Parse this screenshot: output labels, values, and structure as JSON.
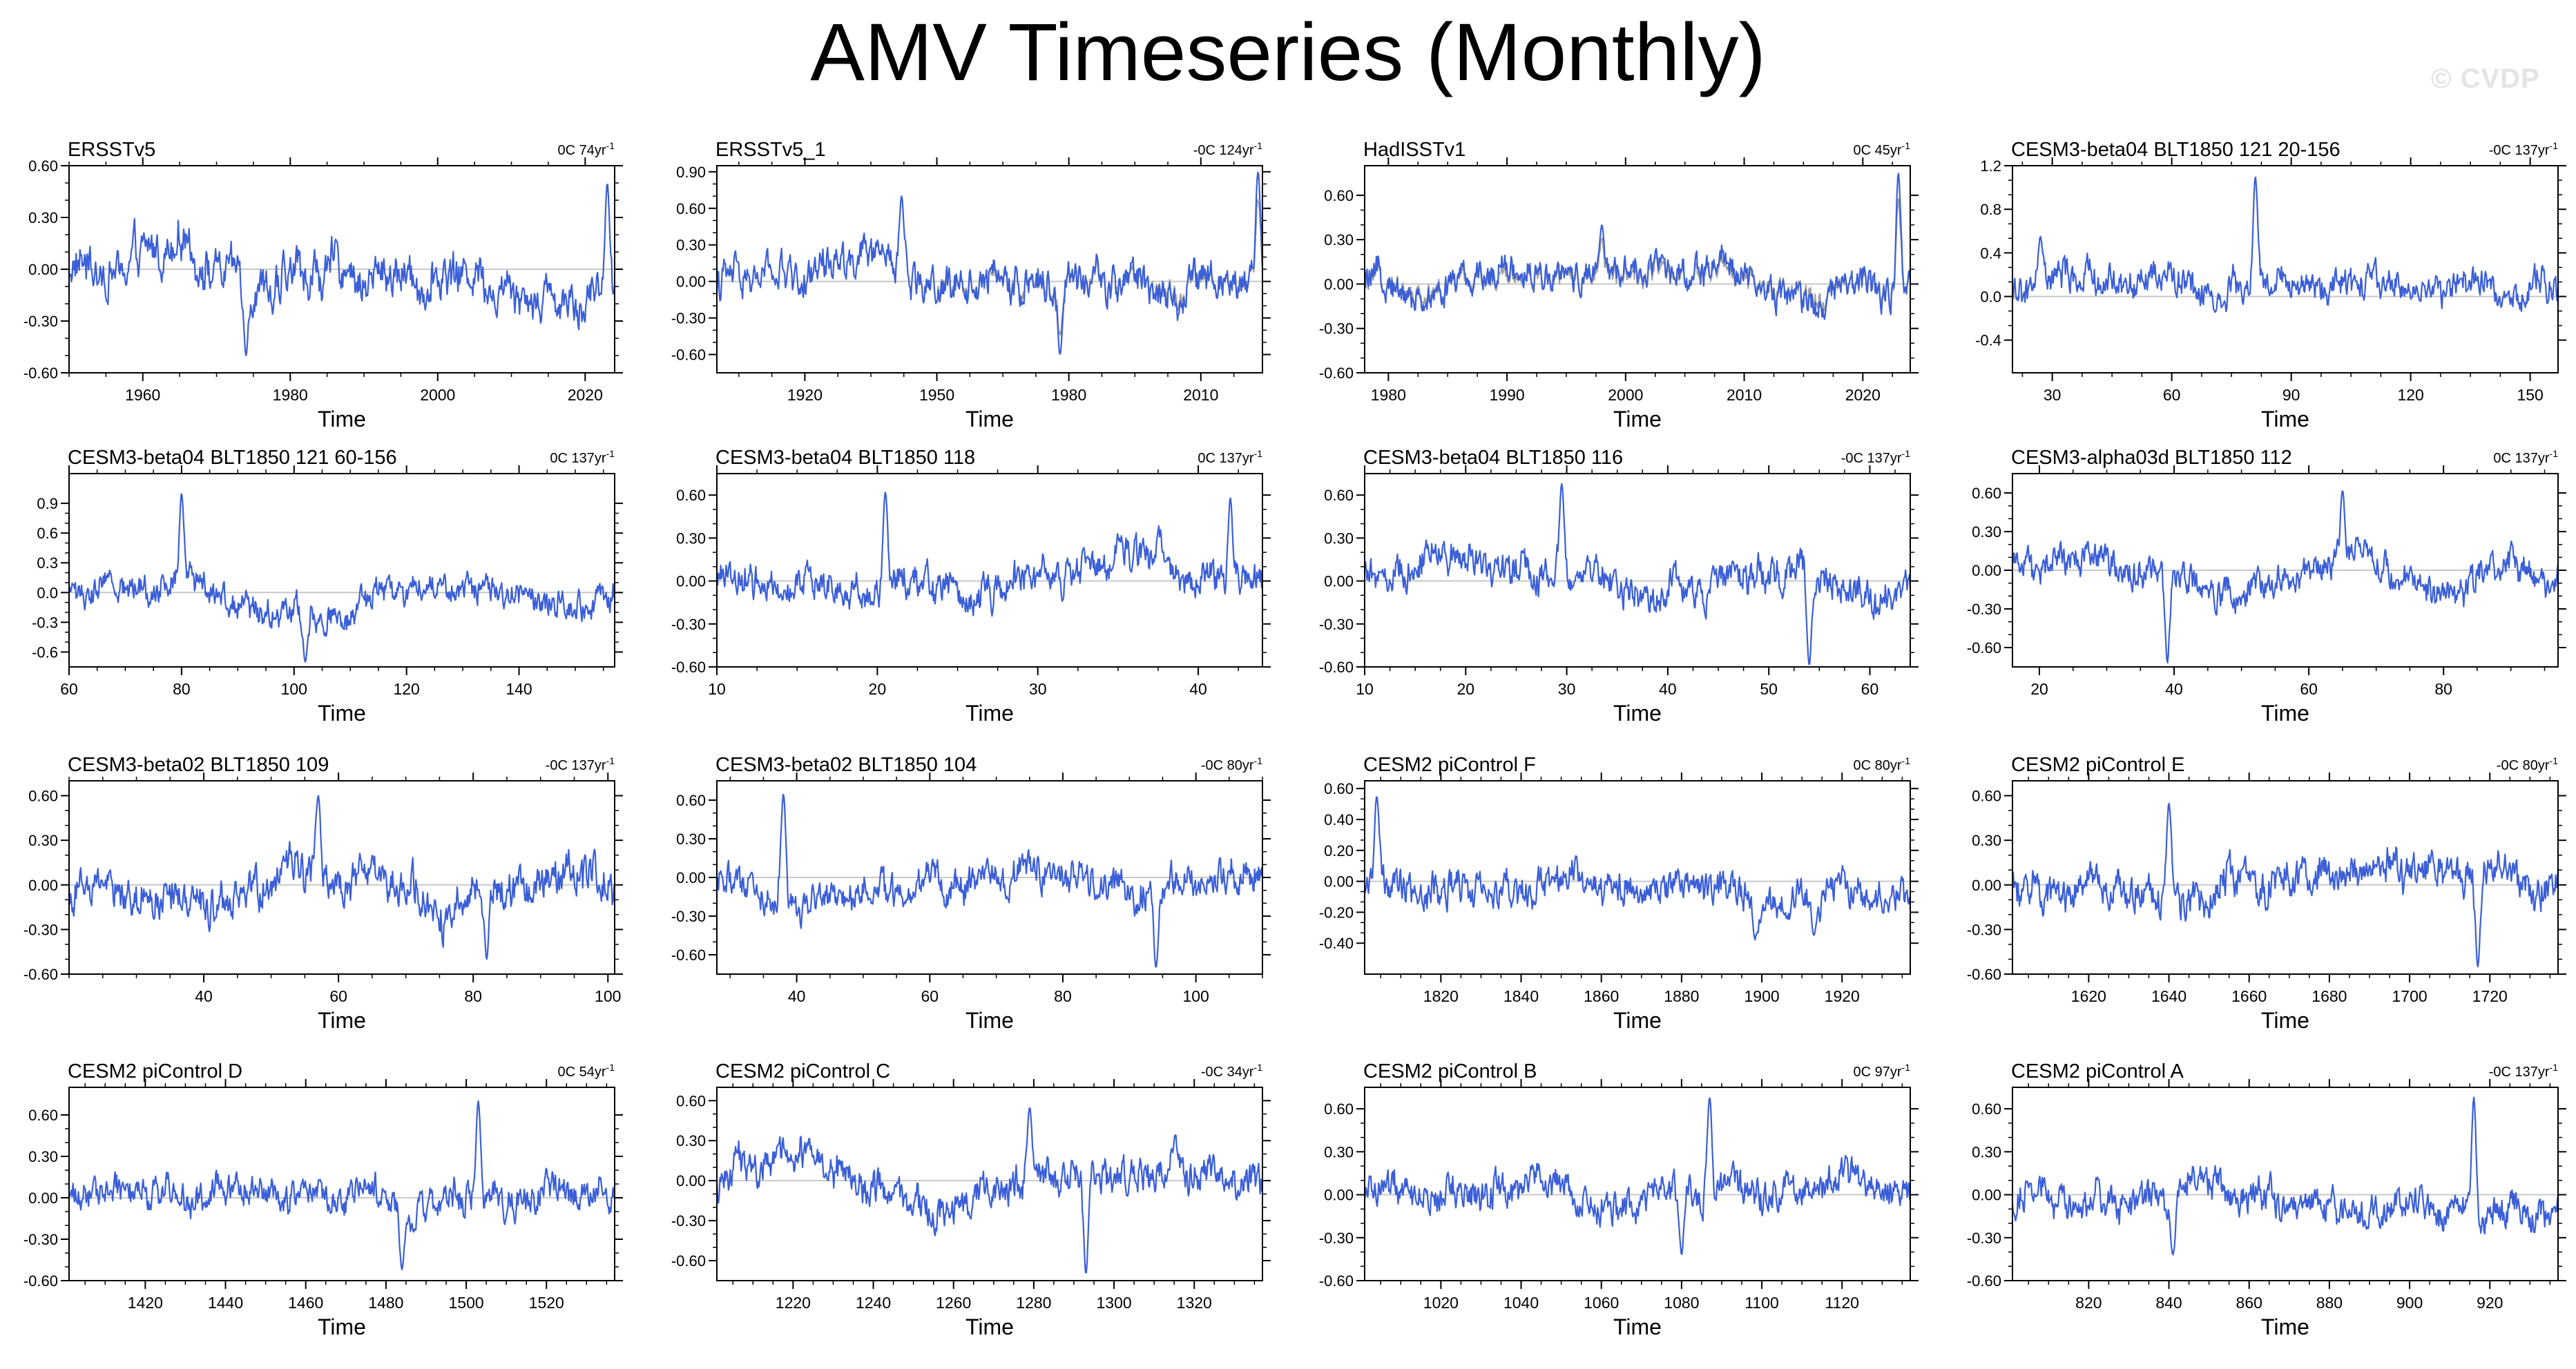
{
  "page": {
    "title": "AMV Timeseries (Monthly)",
    "watermark": "© CVDP"
  },
  "style": {
    "series_color": "#3b5fd8",
    "obs_overlay_color": "#a0a0a0",
    "zero_line_color": "#c8c8c8",
    "frame_color": "#000000"
  },
  "chart_data": [
    {
      "type": "line",
      "title": "ERSSTv5",
      "stat_prefix": "0C 74yr",
      "stat_sup": "-1",
      "xlabel": "Time",
      "xlim": [
        1950,
        2024
      ],
      "xticks": [
        1960,
        1980,
        2000,
        2020
      ],
      "xtick_labels": [
        "1960",
        "1980",
        "2000",
        "2020"
      ],
      "ylim": [
        -0.6,
        0.6
      ],
      "yticks": [
        -0.6,
        -0.3,
        0,
        0.3,
        0.6
      ],
      "ytick_labels": [
        "-0.60",
        "-0.30",
        "0.00",
        "0.30",
        "0.60"
      ],
      "series": [
        {
          "amp": 0.17,
          "events": [
            [
              1974,
              -0.5
            ],
            [
              2023,
              0.5
            ]
          ]
        }
      ]
    },
    {
      "type": "line",
      "title": "ERSSTv5_1",
      "stat_prefix": "-0C 124yr",
      "stat_sup": "-1",
      "xlabel": "Time",
      "xlim": [
        1900,
        2024
      ],
      "xticks": [
        1920,
        1950,
        1980,
        2010
      ],
      "xtick_labels": [
        "1920",
        "1950",
        "1980",
        "2010"
      ],
      "ylim": [
        -0.75,
        0.95
      ],
      "yticks": [
        -0.6,
        -0.3,
        0,
        0.3,
        0.6,
        0.9
      ],
      "ytick_labels": [
        "-0.60",
        "-0.30",
        "0.00",
        "0.30",
        "0.60",
        "0.90"
      ],
      "series": [
        {
          "amp": 0.2,
          "events": [
            [
              1942,
              0.7
            ],
            [
              1978,
              -0.6
            ],
            [
              2023,
              0.9
            ]
          ]
        }
      ],
      "overlay": {
        "from": 1950,
        "to": 2024
      }
    },
    {
      "type": "line",
      "title": "HadISSTv1",
      "stat_prefix": "0C 45yr",
      "stat_sup": "-1",
      "xlabel": "Time",
      "xlim": [
        1978,
        2024
      ],
      "xticks": [
        1980,
        1990,
        2000,
        2010,
        2020
      ],
      "xtick_labels": [
        "1980",
        "1990",
        "2000",
        "2010",
        "2020"
      ],
      "ylim": [
        -0.6,
        0.8
      ],
      "yticks": [
        -0.6,
        -0.3,
        0,
        0.3,
        0.6
      ],
      "ytick_labels": [
        "-0.60",
        "-0.30",
        "0.00",
        "0.30",
        "0.60"
      ],
      "series": [
        {
          "amp": 0.15,
          "events": [
            [
              1998,
              0.4
            ],
            [
              2023,
              0.75
            ]
          ]
        }
      ],
      "overlay": {
        "from": 1978,
        "to": 2024
      }
    },
    {
      "type": "line",
      "title": "CESM3-beta04 BLT1850 121 20-156",
      "stat_prefix": "-0C 137yr",
      "stat_sup": "-1",
      "xlabel": "Time",
      "xlim": [
        20,
        157
      ],
      "xticks": [
        30,
        60,
        90,
        120,
        150
      ],
      "xtick_labels": [
        "30",
        "60",
        "90",
        "120",
        "150"
      ],
      "ylim": [
        -0.7,
        1.2
      ],
      "yticks": [
        -0.4,
        0,
        0.4,
        0.8,
        1.2
      ],
      "ytick_labels": [
        "-0.4",
        "0.0",
        "0.4",
        "0.8",
        "1.2"
      ],
      "series": [
        {
          "amp": 0.2,
          "events": [
            [
              81,
              1.1
            ],
            [
              27,
              0.55
            ]
          ]
        }
      ]
    },
    {
      "type": "line",
      "title": "CESM3-beta04 BLT1850 121 60-156",
      "stat_prefix": "0C 137yr",
      "stat_sup": "-1",
      "xlabel": "Time",
      "xlim": [
        60,
        157
      ],
      "xticks": [
        60,
        80,
        100,
        120,
        140
      ],
      "xtick_labels": [
        "60",
        "80",
        "100",
        "120",
        "140"
      ],
      "ylim": [
        -0.75,
        1.2
      ],
      "yticks": [
        -0.6,
        -0.3,
        0,
        0.3,
        0.6,
        0.9
      ],
      "ytick_labels": [
        "-0.6",
        "-0.3",
        "0.0",
        "0.3",
        "0.6",
        "0.9"
      ],
      "series": [
        {
          "amp": 0.2,
          "events": [
            [
              80,
              1.0
            ],
            [
              102,
              -0.7
            ]
          ]
        }
      ]
    },
    {
      "type": "line",
      "title": "CESM3-beta04 BLT1850 118",
      "stat_prefix": "0C 137yr",
      "stat_sup": "-1",
      "xlabel": "Time",
      "xlim": [
        10,
        44
      ],
      "xticks": [
        10,
        20,
        30,
        40
      ],
      "xtick_labels": [
        "10",
        "20",
        "30",
        "40"
      ],
      "ylim": [
        -0.6,
        0.75
      ],
      "yticks": [
        -0.6,
        -0.3,
        0,
        0.3,
        0.6
      ],
      "ytick_labels": [
        "-0.60",
        "-0.30",
        "0.00",
        "0.30",
        "0.60"
      ],
      "series": [
        {
          "amp": 0.16,
          "events": [
            [
              20.5,
              0.62
            ],
            [
              42,
              0.58
            ]
          ]
        }
      ]
    },
    {
      "type": "line",
      "title": "CESM3-beta04 BLT1850 116",
      "stat_prefix": "-0C 137yr",
      "stat_sup": "-1",
      "xlabel": "Time",
      "xlim": [
        10,
        64
      ],
      "xticks": [
        10,
        20,
        30,
        40,
        50,
        60
      ],
      "xtick_labels": [
        "10",
        "20",
        "30",
        "40",
        "50",
        "60"
      ],
      "ylim": [
        -0.6,
        0.75
      ],
      "yticks": [
        -0.6,
        -0.3,
        0,
        0.3,
        0.6
      ],
      "ytick_labels": [
        "-0.60",
        "-0.30",
        "0.00",
        "0.30",
        "0.60"
      ],
      "series": [
        {
          "amp": 0.17,
          "events": [
            [
              29.5,
              0.68
            ],
            [
              54,
              -0.6
            ]
          ]
        }
      ]
    },
    {
      "type": "line",
      "title": "CESM3-alpha03d BLT1850 112",
      "stat_prefix": "0C 137yr",
      "stat_sup": "-1",
      "xlabel": "Time",
      "xlim": [
        16,
        97
      ],
      "xticks": [
        20,
        40,
        60,
        80
      ],
      "xtick_labels": [
        "20",
        "40",
        "60",
        "80"
      ],
      "ylim": [
        -0.75,
        0.75
      ],
      "yticks": [
        -0.6,
        -0.3,
        0,
        0.3,
        0.6
      ],
      "ytick_labels": [
        "-0.60",
        "-0.30",
        "0.00",
        "0.30",
        "0.60"
      ],
      "series": [
        {
          "amp": 0.17,
          "events": [
            [
              65,
              0.62
            ],
            [
              39,
              -0.72
            ]
          ]
        }
      ]
    },
    {
      "type": "line",
      "title": "CESM3-beta02 BLT1850 109",
      "stat_prefix": "-0C 137yr",
      "stat_sup": "-1",
      "xlabel": "Time",
      "xlim": [
        20,
        101
      ],
      "xticks": [
        40,
        60,
        80,
        100
      ],
      "xtick_labels": [
        "40",
        "60",
        "80",
        "100"
      ],
      "ylim": [
        -0.6,
        0.7
      ],
      "yticks": [
        -0.6,
        -0.3,
        0,
        0.3,
        0.6
      ],
      "ytick_labels": [
        "-0.60",
        "-0.30",
        "0.00",
        "0.30",
        "0.60"
      ],
      "series": [
        {
          "amp": 0.18,
          "events": [
            [
              57,
              0.6
            ],
            [
              82,
              -0.5
            ]
          ]
        }
      ]
    },
    {
      "type": "line",
      "title": "CESM3-beta02 BLT1850 104",
      "stat_prefix": "-0C 80yr",
      "stat_sup": "-1",
      "xlabel": "Time",
      "xlim": [
        28,
        110
      ],
      "xticks": [
        40,
        60,
        80,
        100
      ],
      "xtick_labels": [
        "40",
        "60",
        "80",
        "100"
      ],
      "ylim": [
        -0.75,
        0.75
      ],
      "yticks": [
        -0.6,
        -0.3,
        0,
        0.3,
        0.6
      ],
      "ytick_labels": [
        "-0.60",
        "-0.30",
        "0.00",
        "0.30",
        "0.60"
      ],
      "series": [
        {
          "amp": 0.18,
          "events": [
            [
              38,
              0.65
            ],
            [
              94,
              -0.7
            ]
          ]
        }
      ]
    },
    {
      "type": "line",
      "title": "CESM2 piControl F",
      "stat_prefix": "0C 80yr",
      "stat_sup": "-1",
      "xlabel": "Time",
      "xlim": [
        1801,
        1937
      ],
      "xticks": [
        1820,
        1840,
        1860,
        1880,
        1900,
        1920
      ],
      "xtick_labels": [
        "1820",
        "1840",
        "1860",
        "1880",
        "1900",
        "1920"
      ],
      "ylim": [
        -0.6,
        0.65
      ],
      "yticks": [
        -0.4,
        -0.2,
        0,
        0.2,
        0.4,
        0.6
      ],
      "ytick_labels": [
        "-0.40",
        "-0.20",
        "0.00",
        "0.20",
        "0.40",
        "0.60"
      ],
      "series": [
        {
          "amp": 0.15,
          "events": [
            [
              1804,
              0.55
            ],
            [
              1913,
              -0.35
            ]
          ]
        }
      ]
    },
    {
      "type": "line",
      "title": "CESM2 piControl E",
      "stat_prefix": "-0C 80yr",
      "stat_sup": "-1",
      "xlabel": "Time",
      "xlim": [
        1601,
        1737
      ],
      "xticks": [
        1620,
        1640,
        1660,
        1680,
        1700,
        1720
      ],
      "xtick_labels": [
        "1620",
        "1640",
        "1660",
        "1680",
        "1700",
        "1720"
      ],
      "ylim": [
        -0.6,
        0.7
      ],
      "yticks": [
        -0.6,
        -0.3,
        0,
        0.3,
        0.6
      ],
      "ytick_labels": [
        "-0.60",
        "-0.30",
        "0.00",
        "0.30",
        "0.60"
      ],
      "series": [
        {
          "amp": 0.17,
          "events": [
            [
              1640,
              0.55
            ],
            [
              1717,
              -0.55
            ]
          ]
        }
      ]
    },
    {
      "type": "line",
      "title": "CESM2 piControl D",
      "stat_prefix": "0C 54yr",
      "stat_sup": "-1",
      "xlabel": "Time",
      "xlim": [
        1401,
        1537
      ],
      "xticks": [
        1420,
        1440,
        1460,
        1480,
        1500,
        1520
      ],
      "xtick_labels": [
        "1420",
        "1440",
        "1460",
        "1480",
        "1500",
        "1520"
      ],
      "ylim": [
        -0.6,
        0.8
      ],
      "yticks": [
        -0.6,
        -0.3,
        0,
        0.3,
        0.6
      ],
      "ytick_labels": [
        "-0.60",
        "-0.30",
        "0.00",
        "0.30",
        "0.60"
      ],
      "series": [
        {
          "amp": 0.16,
          "events": [
            [
              1503,
              0.7
            ],
            [
              1484,
              -0.52
            ]
          ]
        }
      ]
    },
    {
      "type": "line",
      "title": "CESM2 piControl C",
      "stat_prefix": "-0C 34yr",
      "stat_sup": "-1",
      "xlabel": "Time",
      "xlim": [
        1201,
        1337
      ],
      "xticks": [
        1220,
        1240,
        1260,
        1280,
        1300,
        1320
      ],
      "xtick_labels": [
        "1220",
        "1240",
        "1260",
        "1280",
        "1300",
        "1320"
      ],
      "ylim": [
        -0.75,
        0.7
      ],
      "yticks": [
        -0.6,
        -0.3,
        0,
        0.3,
        0.6
      ],
      "ytick_labels": [
        "-0.60",
        "-0.30",
        "0.00",
        "0.30",
        "0.60"
      ],
      "series": [
        {
          "amp": 0.18,
          "events": [
            [
              1279,
              0.55
            ],
            [
              1293,
              -0.7
            ]
          ]
        }
      ]
    },
    {
      "type": "line",
      "title": "CESM2 piControl B",
      "stat_prefix": "0C 97yr",
      "stat_sup": "-1",
      "xlabel": "Time",
      "xlim": [
        1001,
        1137
      ],
      "xticks": [
        1020,
        1040,
        1060,
        1080,
        1100,
        1120
      ],
      "xtick_labels": [
        "1020",
        "1040",
        "1060",
        "1080",
        "1100",
        "1120"
      ],
      "ylim": [
        -0.6,
        0.75
      ],
      "yticks": [
        -0.6,
        -0.3,
        0,
        0.3,
        0.6
      ],
      "ytick_labels": [
        "-0.60",
        "-0.30",
        "0.00",
        "0.30",
        "0.60"
      ],
      "series": [
        {
          "amp": 0.16,
          "events": [
            [
              1087,
              0.68
            ],
            [
              1080,
              -0.42
            ]
          ]
        }
      ]
    },
    {
      "type": "line",
      "title": "CESM2 piControl A",
      "stat_prefix": "-0C 137yr",
      "stat_sup": "-1",
      "xlabel": "Time",
      "xlim": [
        801,
        937
      ],
      "xticks": [
        820,
        840,
        860,
        880,
        900,
        920
      ],
      "xtick_labels": [
        "820",
        "840",
        "860",
        "880",
        "900",
        "920"
      ],
      "ylim": [
        -0.6,
        0.75
      ],
      "yticks": [
        -0.6,
        -0.3,
        0,
        0.3,
        0.6
      ],
      "ytick_labels": [
        "-0.60",
        "-0.30",
        "0.00",
        "0.30",
        "0.60"
      ],
      "series": [
        {
          "amp": 0.16,
          "events": [
            [
              916,
              0.68
            ],
            [
              841,
              -0.42
            ]
          ]
        }
      ]
    }
  ]
}
